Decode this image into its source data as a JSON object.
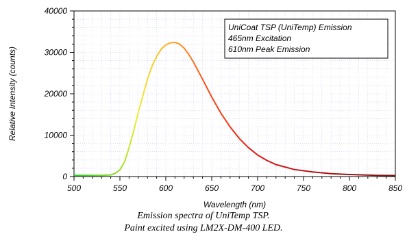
{
  "chart_data": {
    "type": "line",
    "title": "",
    "xlabel": "Wavelength (nm)",
    "ylabel": "Relative Intensity (counts)",
    "xlim": [
      500,
      850
    ],
    "ylim": [
      0,
      40000
    ],
    "x_ticks": [
      500,
      550,
      600,
      650,
      700,
      750,
      800,
      850
    ],
    "y_ticks": [
      0,
      10000,
      20000,
      30000,
      40000
    ],
    "grid": true,
    "legend_lines": [
      "UniCoat TSP (UniTemp) Emission",
      "465nm Excitation",
      "610nm Peak Emission"
    ],
    "legend_position": "top-right",
    "series": [
      {
        "x": [
          500,
          530,
          540,
          545,
          550,
          555,
          560,
          565,
          570,
          575,
          580,
          585,
          590,
          595,
          600,
          605,
          610,
          615,
          620,
          625,
          630,
          640,
          650,
          660,
          670,
          680,
          690,
          700,
          710,
          720,
          740,
          760,
          780,
          800,
          830,
          850
        ],
        "values": [
          300,
          300,
          400,
          800,
          1600,
          3500,
          7000,
          11000,
          15500,
          19500,
          23500,
          26700,
          29000,
          30800,
          31800,
          32300,
          32400,
          32000,
          31000,
          29500,
          27700,
          23500,
          19200,
          15300,
          12000,
          9200,
          7000,
          5200,
          3900,
          2900,
          1700,
          1100,
          700,
          500,
          300,
          250
        ]
      }
    ]
  },
  "caption": {
    "line1": "Emission spectra of UniTemp TSP.",
    "line2": "Paint excited using LM2X-DM-400 LED."
  }
}
